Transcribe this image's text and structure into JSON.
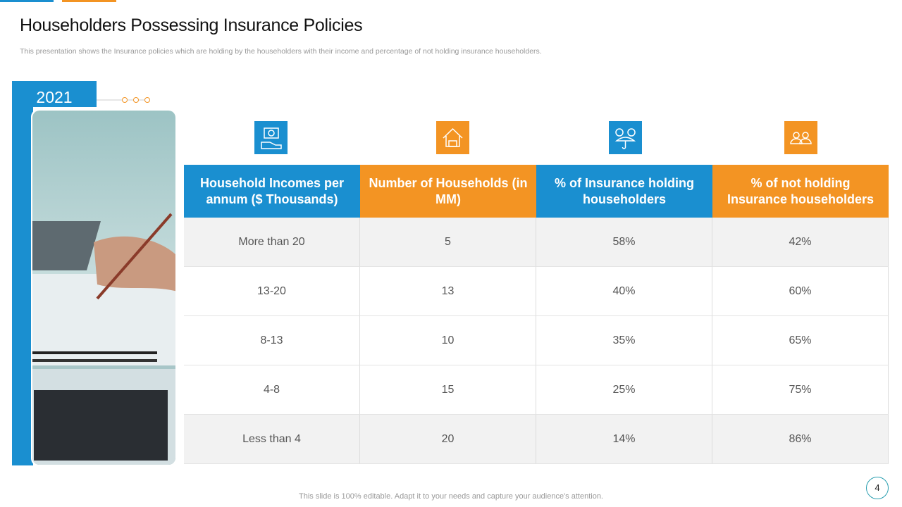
{
  "header": {
    "title": "Householders Possessing Insurance Policies",
    "subtitle": "This presentation shows the Insurance policies which are holding by the householders with their income and percentage of not holding insurance householders."
  },
  "year": "2021",
  "table": {
    "columns": [
      "Household Incomes per annum ($ Thousands)",
      "Number of Households (in MM)",
      "% of Insurance holding householders",
      "% of not holding Insurance householders"
    ],
    "rows": [
      [
        "More than 20",
        "5",
        "58%",
        "42%"
      ],
      [
        "13-20",
        "13",
        "40%",
        "60%"
      ],
      [
        "8-13",
        "10",
        "35%",
        "65%"
      ],
      [
        "4-8",
        "15",
        "25%",
        "75%"
      ],
      [
        "Less than  4",
        "20",
        "14%",
        "86%"
      ]
    ]
  },
  "footer": "This slide is 100% editable. Adapt it to your needs and capture your audience's attention.",
  "page_number": "4"
}
